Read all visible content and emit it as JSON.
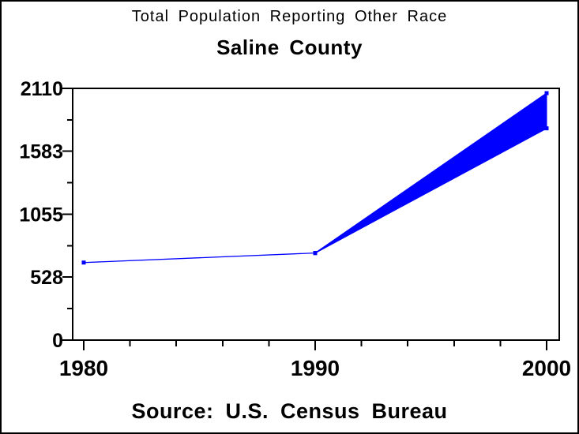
{
  "page": {
    "background": "#ffffff",
    "border_color": "#000000"
  },
  "chart_data": {
    "type": "line",
    "title": "Total Population Reporting Other Race",
    "subtitle": "Saline County",
    "footnote": "Source: U.S. Census Bureau",
    "xlabel": "",
    "ylabel": "",
    "xlim": [
      1979.5,
      2000.6
    ],
    "ylim": [
      0,
      2110
    ],
    "yticks": [
      0,
      528,
      1055,
      1583,
      2110
    ],
    "yticks_minor": [
      264,
      792,
      1319,
      1847
    ],
    "xticks": [
      1980,
      1990,
      2000
    ],
    "xticks_minor": [
      1982,
      1984,
      1986,
      1988,
      1992,
      1994,
      1996,
      1998
    ],
    "grid": false,
    "legend": null,
    "axis_color": "#000000",
    "series_color": "#0000ff",
    "series": [
      {
        "name": "reported-population",
        "style": "line",
        "color": "#0000ff",
        "points": [
          [
            1980,
            650
          ],
          [
            1990,
            730
          ]
        ],
        "markers": true
      },
      {
        "name": "range-upper",
        "style": "line",
        "color": "#0000ff",
        "points": [
          [
            1990,
            730
          ],
          [
            2000,
            2070
          ]
        ],
        "markers": true
      },
      {
        "name": "range-lower",
        "style": "line",
        "color": "#0000ff",
        "points": [
          [
            1990,
            730
          ],
          [
            2000,
            1775
          ]
        ],
        "markers": true
      }
    ],
    "band": {
      "fill": "#0000ff",
      "vertices": [
        [
          1990,
          730
        ],
        [
          2000,
          2070
        ],
        [
          2000,
          1775
        ]
      ]
    }
  }
}
